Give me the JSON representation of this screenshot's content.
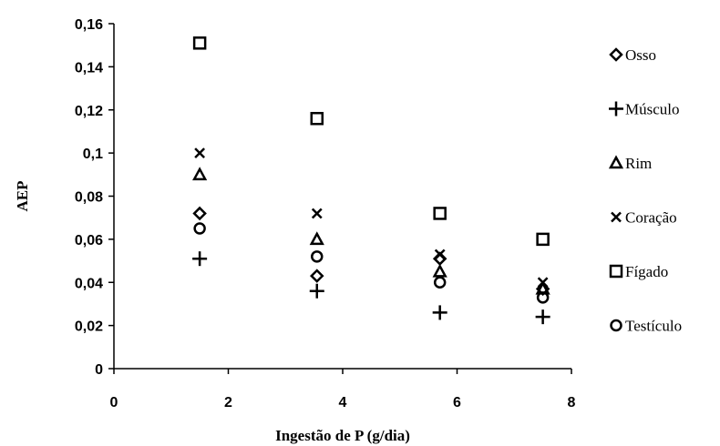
{
  "chart_data": {
    "type": "scatter",
    "title": "",
    "xlabel": "Ingestão de P (g/dia)",
    "ylabel": "AEP",
    "xlim": [
      0,
      8
    ],
    "ylim": [
      0,
      0.16
    ],
    "x_ticks": [
      0,
      2,
      4,
      6,
      8
    ],
    "y_ticks": [
      0,
      0.02,
      0.04,
      0.06,
      0.08,
      0.1,
      0.12,
      0.14,
      0.16
    ],
    "x_tick_labels": [
      "0",
      "2",
      "4",
      "6",
      "8"
    ],
    "y_tick_labels": [
      "0",
      "0,02",
      "0,04",
      "0,06",
      "0,08",
      "0,1",
      "0,12",
      "0,14",
      "0,16"
    ],
    "grid": false,
    "legend_position": "right",
    "series": [
      {
        "name": "Osso",
        "marker": "diamond",
        "x": [
          1.5,
          3.55,
          5.7,
          7.5
        ],
        "y": [
          0.072,
          0.043,
          0.051,
          0.037
        ]
      },
      {
        "name": "Músculo",
        "marker": "plus",
        "x": [
          1.5,
          3.55,
          5.7,
          7.5
        ],
        "y": [
          0.051,
          0.036,
          0.026,
          0.024
        ]
      },
      {
        "name": "Rim",
        "marker": "triangle",
        "x": [
          1.5,
          3.55,
          5.7,
          7.5
        ],
        "y": [
          0.09,
          0.06,
          0.045,
          0.037
        ]
      },
      {
        "name": "Coração",
        "marker": "x",
        "x": [
          1.5,
          3.55,
          5.7,
          7.5
        ],
        "y": [
          0.1,
          0.072,
          0.053,
          0.04
        ]
      },
      {
        "name": "Fígado",
        "marker": "square",
        "x": [
          1.5,
          3.55,
          5.7,
          7.5
        ],
        "y": [
          0.151,
          0.116,
          0.072,
          0.06
        ]
      },
      {
        "name": "Testículo",
        "marker": "circle",
        "x": [
          1.5,
          3.55,
          5.7,
          7.5
        ],
        "y": [
          0.065,
          0.052,
          0.04,
          0.033
        ]
      }
    ]
  }
}
